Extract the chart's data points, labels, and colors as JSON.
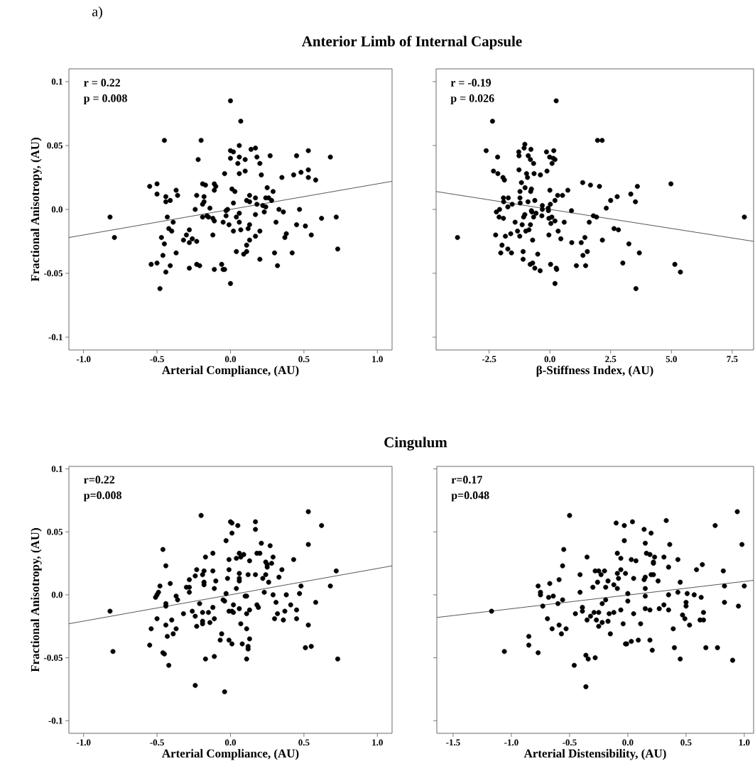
{
  "chart_data": [
    {
      "type": "scatter",
      "title": "a)",
      "subtitle": "Anterior Limb of Internal Capsule",
      "xlabel": "Arterial Compliance, (AU)",
      "ylabel": "Fractional Anisotropy, (AU)",
      "annotations": [
        "r = 0.22",
        "p = 0.008"
      ],
      "xlim": [
        -1.1,
        1.1
      ],
      "ylim": [
        -0.11,
        0.11
      ],
      "xticks": [
        {
          "value": -1,
          "label": "-1.0"
        },
        -0.5,
        {
          "value": 0,
          "label": "0.0"
        },
        0.5,
        {
          "value": 1,
          "label": "1.0"
        }
      ],
      "yticks": [
        -0.1,
        -0.05,
        {
          "value": 0,
          "label": "0.0"
        },
        0.05,
        0.1
      ],
      "series": [
        {
          "marker": "circle",
          "color": "#000000",
          "x": [
            -0.82,
            -0.79,
            -0.45,
            -0.2,
            0.0,
            0.07,
            -0.22,
            -0.55,
            -0.5,
            -0.5,
            -0.44,
            -0.44,
            -0.41,
            -0.37,
            -0.36,
            -0.43,
            -0.39,
            -0.42,
            -0.4,
            -0.47,
            -0.45,
            -0.46,
            -0.37,
            -0.54,
            -0.5,
            -0.41,
            -0.44,
            -0.48,
            -0.3,
            -0.28,
            -0.32,
            -0.28,
            -0.26,
            -0.23,
            -0.28,
            -0.23,
            -0.21,
            -0.23,
            -0.24,
            -0.19,
            -0.17,
            -0.18,
            -0.18,
            -0.19,
            -0.14,
            -0.11,
            -0.1,
            -0.11,
            -0.19,
            -0.16,
            -0.15,
            -0.12,
            -0.11,
            -0.12,
            -0.11,
            -0.06,
            -0.05,
            -0.04,
            0.0,
            -0.04,
            -0.05,
            -0.03,
            -0.03,
            -0.02,
            -0.01,
            0.02,
            0.01,
            0.03,
            0.02,
            0.0,
            0.02,
            0.0,
            0.06,
            0.06,
            0.05,
            0.1,
            0.1,
            0.06,
            0.04,
            0.06,
            0.06,
            0.07,
            0.13,
            0.11,
            0.13,
            0.17,
            0.18,
            0.17,
            0.13,
            0.12,
            0.13,
            0.11,
            0.11,
            0.09,
            0.04,
            0.17,
            0.2,
            0.2,
            0.14,
            0.17,
            0.18,
            0.2,
            0.21,
            0.27,
            0.25,
            0.29,
            0.24,
            0.26,
            0.28,
            0.22,
            0.24,
            0.23,
            0.35,
            0.33,
            0.36,
            0.31,
            0.3,
            0.32,
            0.37,
            0.38,
            0.42,
            0.45,
            0.47,
            0.43,
            0.48,
            0.45,
            0.53,
            0.53,
            0.53,
            0.58,
            0.68,
            0.51,
            0.55,
            0.62,
            0.72,
            0.73
          ],
          "values": [
            -0.006,
            -0.022,
            0.054,
            0.054,
            0.085,
            0.069,
            0.039,
            0.018,
            0.02,
            0.012,
            0.01,
            0.006,
            0.007,
            0.015,
            0.011,
            -0.006,
            -0.01,
            -0.015,
            -0.017,
            -0.022,
            -0.027,
            -0.036,
            -0.034,
            -0.043,
            -0.042,
            -0.044,
            -0.049,
            -0.062,
            -0.02,
            -0.016,
            -0.024,
            -0.026,
            -0.023,
            -0.025,
            -0.046,
            -0.043,
            -0.044,
            0.011,
            0.0,
            0.02,
            0.019,
            0.01,
            0.006,
            0.004,
            0.001,
            0.02,
            0.018,
            0.015,
            -0.006,
            -0.005,
            -0.006,
            -0.007,
            -0.009,
            -0.02,
            -0.047,
            -0.043,
            -0.047,
            -0.047,
            -0.058,
            0.028,
            -0.01,
            -0.001,
            -0.005,
            0.0,
            -0.012,
            -0.017,
            0.016,
            0.014,
            0.005,
            0.046,
            0.045,
            0.04,
            0.05,
            0.041,
            0.036,
            0.039,
            0.03,
            0.028,
            -0.006,
            -0.01,
            -0.003,
            -0.016,
            0.011,
            0.007,
            0.006,
            0.009,
            0.004,
            -0.004,
            -0.012,
            -0.015,
            -0.024,
            -0.028,
            -0.033,
            -0.035,
            -0.033,
            -0.021,
            -0.017,
            -0.039,
            0.047,
            0.048,
            0.041,
            0.036,
            0.027,
            0.042,
            0.017,
            0.014,
            0.009,
            0.009,
            0.007,
            0.003,
            0.002,
            -0.002,
            0.025,
            0.0,
            -0.002,
            -0.01,
            -0.034,
            -0.044,
            -0.022,
            -0.019,
            -0.034,
            -0.012,
            0.0,
            0.027,
            0.029,
            0.042,
            0.046,
            0.031,
            0.025,
            0.023,
            0.041,
            -0.013,
            -0.02,
            -0.007,
            -0.006,
            -0.031
          ]
        },
        {
          "type": "line",
          "marker": "none",
          "color": "#444444",
          "x": [
            -1.1,
            1.1
          ],
          "values": [
            -0.022,
            0.022
          ]
        }
      ]
    },
    {
      "type": "scatter",
      "xlabel": "β-Stiffness Index, (AU)",
      "annotations": [
        "r = -0.19",
        "p = 0.026"
      ],
      "tick_labels": "x",
      "xlim": [
        -4.68,
        8.38
      ],
      "ylim": [
        -0.11,
        0.11
      ],
      "xticks": [
        -2.5,
        {
          "value": 0,
          "label": "0.0"
        },
        2.5,
        {
          "value": 5,
          "label": "5.0"
        },
        7.5
      ],
      "yticks": [
        -0.1,
        -0.05,
        0,
        0.05,
        0.1
      ],
      "series": [
        {
          "marker": "circle",
          "color": "#000000",
          "x": [
            -3.8,
            -2.36,
            -2.62,
            -2.15,
            -2.32,
            -2.14,
            -1.93,
            -1.87,
            0.26,
            1.96,
            2.15,
            -1.28,
            -1.27,
            -1.03,
            -1.06,
            -0.78,
            -0.89,
            -0.8,
            -0.67,
            -1.27,
            -0.96,
            -0.92,
            -0.65,
            -0.39,
            -0.14,
            0.16,
            -0.01,
            0.14,
            0.21,
            0.09,
            -0.12,
            -1.17,
            -1.02,
            -1.23,
            -0.76,
            -0.79,
            -1.23,
            -1.22,
            -0.9,
            -0.62,
            0.0,
            0.32,
            0.52,
            0.74,
            -1.91,
            -1.71,
            -1.9,
            -1.55,
            -1.73,
            -2.2,
            -2.07,
            -2.09,
            -1.91,
            -1.43,
            -1.14,
            -1.08,
            -1.03,
            -0.76,
            -0.74,
            -0.67,
            -0.57,
            -0.31,
            -0.31,
            -0.07,
            -0.33,
            -0.06,
            0.02,
            0.21,
            -0.04,
            0.08,
            0.21,
            0.04,
            0.59,
            0.89,
            -1.33,
            -1.24,
            -0.99,
            -0.86,
            -0.8,
            -0.71,
            -1.61,
            -1.83,
            -2.23,
            -1.97,
            -1.73,
            -1.58,
            -2.02,
            -1.1,
            -1.1,
            -0.81,
            -0.71,
            -0.62,
            -0.4,
            -0.5,
            -0.04,
            0.34,
            0.45,
            0.9,
            1.29,
            1.44,
            1.36,
            1.54,
            0.03,
            0.26,
            0.28,
            0.21,
            1.09,
            1.47,
            1.35,
            1.67,
            2.04,
            1.79,
            1.92,
            1.62,
            2.32,
            2.5,
            2.77,
            2.64,
            2.82,
            2.16,
            3.25,
            3.68,
            3.0,
            3.33,
            3.6,
            3.52,
            3.54,
            4.98,
            5.14,
            5.37,
            8.0
          ],
          "values": [
            -0.022,
            0.069,
            0.046,
            0.041,
            0.03,
            0.028,
            0.025,
            0.023,
            0.085,
            0.054,
            0.054,
            0.045,
            0.042,
            0.051,
            0.048,
            0.047,
            0.042,
            0.039,
            0.036,
            0.031,
            0.028,
            0.025,
            0.028,
            0.027,
            0.045,
            0.046,
            0.041,
            0.04,
            0.039,
            0.036,
            0.03,
            0.021,
            0.017,
            0.014,
            0.016,
            0.014,
            0.009,
            0.005,
            0.006,
            0.007,
            0.015,
            0.011,
            0.011,
            0.015,
            0.009,
            0.009,
            0.006,
            0.004,
            0.002,
            -0.002,
            0.0,
            -0.006,
            -0.007,
            -0.01,
            -0.012,
            -0.006,
            -0.004,
            -0.001,
            -0.002,
            -0.006,
            -0.003,
            0.003,
            0.0,
            0.001,
            -0.005,
            -0.001,
            0.004,
            0.007,
            -0.007,
            -0.006,
            -0.009,
            -0.011,
            -0.01,
            -0.001,
            -0.017,
            -0.021,
            -0.017,
            -0.016,
            -0.012,
            -0.024,
            -0.019,
            -0.021,
            -0.02,
            -0.028,
            -0.031,
            -0.034,
            -0.034,
            -0.033,
            -0.039,
            -0.043,
            -0.042,
            -0.046,
            -0.048,
            -0.035,
            -0.02,
            -0.017,
            -0.023,
            -0.026,
            -0.026,
            -0.022,
            -0.036,
            -0.033,
            -0.043,
            -0.046,
            -0.047,
            -0.058,
            -0.044,
            -0.044,
            0.021,
            0.019,
            0.018,
            -0.005,
            -0.006,
            -0.01,
            0.001,
            0.007,
            0.01,
            -0.015,
            -0.016,
            -0.024,
            -0.027,
            -0.034,
            -0.042,
            0.012,
            0.018,
            0.006,
            -0.062,
            0.02,
            -0.043,
            -0.049,
            -0.006
          ]
        },
        {
          "type": "line",
          "marker": "none",
          "color": "#444444",
          "x": [
            -4.68,
            8.38
          ],
          "values": [
            0.014,
            -0.025
          ]
        }
      ]
    },
    {
      "type": "scatter",
      "subtitle": "Cingulum",
      "xlabel": "Arterial Compliance, (AU)",
      "ylabel": "Fractional Anisotropy, (AU)",
      "annotations": [
        "r=0.22",
        "p=0.008"
      ],
      "xlim": [
        -1.1,
        1.1
      ],
      "ylim": [
        -0.11,
        0.102
      ],
      "xticks": [
        {
          "value": -1,
          "label": "-1.0"
        },
        -0.5,
        {
          "value": 0,
          "label": "0.0"
        },
        0.5,
        {
          "value": 1,
          "label": "1.0"
        }
      ],
      "yticks": [
        -0.1,
        -0.05,
        {
          "value": 0,
          "label": "0.0"
        },
        0.05,
        0.1
      ],
      "series": [
        {
          "marker": "circle",
          "color": "#000000",
          "x": [
            -0.82,
            -0.8,
            -0.46,
            -0.44,
            -0.48,
            -0.41,
            -0.49,
            -0.5,
            -0.51,
            -0.37,
            -0.36,
            -0.44,
            -0.44,
            -0.5,
            -0.44,
            -0.4,
            -0.37,
            -0.39,
            -0.43,
            -0.54,
            -0.55,
            -0.46,
            -0.45,
            -0.42,
            -0.32,
            -0.3,
            -0.28,
            -0.28,
            -0.28,
            -0.26,
            -0.24,
            -0.23,
            -0.21,
            -0.24,
            -0.23,
            -0.24,
            -0.2,
            -0.17,
            -0.18,
            -0.19,
            -0.18,
            -0.18,
            -0.19,
            -0.19,
            -0.19,
            -0.17,
            -0.15,
            -0.14,
            -0.12,
            -0.12,
            -0.1,
            -0.11,
            -0.12,
            -0.11,
            -0.11,
            -0.03,
            -0.01,
            -0.01,
            -0.02,
            -0.03,
            -0.05,
            -0.04,
            -0.01,
            0.01,
            0.02,
            0.02,
            0.04,
            -0.01,
            0.01,
            -0.06,
            -0.07,
            -0.04,
            0.0,
            0.01,
            0.05,
            0.01,
            0.04,
            0.06,
            0.07,
            0.09,
            0.06,
            0.06,
            0.06,
            0.06,
            0.07,
            0.08,
            0.1,
            0.11,
            0.13,
            0.11,
            0.11,
            0.13,
            0.12,
            0.12,
            0.11,
            0.13,
            0.12,
            0.17,
            0.17,
            0.18,
            0.2,
            0.21,
            0.17,
            0.22,
            0.24,
            0.26,
            0.24,
            0.25,
            0.25,
            0.28,
            0.27,
            0.29,
            0.23,
            0.18,
            0.19,
            0.29,
            0.31,
            0.32,
            0.3,
            0.36,
            0.35,
            0.33,
            0.38,
            0.37,
            0.41,
            0.43,
            0.45,
            0.45,
            0.47,
            0.48,
            0.53,
            0.53,
            0.53,
            0.51,
            0.55,
            0.58,
            0.62,
            0.68,
            0.72,
            0.73
          ],
          "values": [
            -0.013,
            -0.045,
            0.036,
            0.023,
            0.007,
            0.009,
            0.002,
            0.0,
            -0.002,
            -0.001,
            -0.004,
            -0.007,
            -0.009,
            -0.019,
            -0.024,
            -0.02,
            -0.027,
            -0.031,
            -0.033,
            -0.027,
            -0.04,
            -0.046,
            -0.047,
            -0.056,
            -0.015,
            0.006,
            0.012,
            0.006,
            0.002,
            -0.013,
            -0.017,
            -0.025,
            -0.007,
            -0.072,
            0.02,
            0.015,
            0.063,
            0.03,
            0.019,
            0.016,
            0.01,
            0.008,
            -0.014,
            -0.021,
            -0.023,
            -0.051,
            -0.014,
            -0.022,
            0.033,
            0.019,
            0.011,
            0.005,
            -0.01,
            -0.019,
            -0.049,
            0.043,
            0.028,
            0.02,
            0.013,
            0.001,
            -0.004,
            -0.005,
            -0.013,
            -0.013,
            -0.008,
            -0.014,
            0.005,
            -0.036,
            -0.039,
            -0.031,
            -0.036,
            -0.077,
            0.058,
            0.057,
            0.055,
            0.049,
            0.029,
            0.033,
            0.03,
            0.032,
            0.017,
            0.013,
            0.011,
            -0.011,
            -0.023,
            -0.039,
            -0.001,
            -0.001,
            -0.012,
            -0.027,
            -0.015,
            -0.035,
            -0.041,
            -0.043,
            -0.051,
            0.027,
            0.016,
            0.058,
            0.052,
            0.033,
            0.033,
            0.041,
            0.016,
            0.013,
            0.016,
            0.01,
            0.026,
            0.024,
            0.022,
            0.025,
            0.039,
            0.03,
            0.002,
            -0.008,
            -0.01,
            0.0,
            -0.006,
            -0.015,
            -0.019,
            -0.02,
            0.02,
            0.014,
            0.0,
            -0.013,
            -0.008,
            0.028,
            -0.012,
            -0.019,
            0.001,
            0.007,
            0.04,
            0.066,
            -0.024,
            -0.042,
            -0.041,
            -0.006,
            0.055,
            0.007,
            0.019,
            -0.051
          ]
        },
        {
          "type": "line",
          "marker": "none",
          "color": "#444444",
          "x": [
            -1.1,
            1.1
          ],
          "values": [
            -0.023,
            0.023
          ]
        }
      ]
    },
    {
      "type": "scatter",
      "xlabel": "Arterial Distensibility, (AU)",
      "annotations": [
        "r=0.17",
        "p=0.048"
      ],
      "tick_labels": "x",
      "xlim": [
        -1.64,
        1.08
      ],
      "ylim": [
        -0.11,
        0.102
      ],
      "xticks": [
        -1.5,
        {
          "value": -1,
          "label": "-1.0"
        },
        -0.5,
        {
          "value": 0,
          "label": "0.0"
        },
        0.5,
        {
          "value": 1,
          "label": "1.0"
        }
      ],
      "yticks": [
        -0.1,
        -0.05,
        0,
        0.05,
        0.1
      ],
      "series": [
        {
          "marker": "circle",
          "color": "#000000",
          "x": [
            -1.17,
            -1.06,
            -0.85,
            -0.85,
            -0.77,
            -0.77,
            -0.75,
            -0.75,
            -0.73,
            -0.68,
            -0.67,
            -0.64,
            -0.69,
            -0.65,
            -0.6,
            -0.59,
            -0.59,
            -0.57,
            -0.56,
            -0.56,
            -0.55,
            -0.53,
            -0.5,
            -0.46,
            -0.45,
            -0.41,
            -0.41,
            -0.39,
            -0.39,
            -0.36,
            -0.35,
            -0.34,
            -0.35,
            -0.36,
            -0.32,
            -0.3,
            -0.29,
            -0.27,
            -0.28,
            -0.28,
            -0.25,
            -0.26,
            -0.25,
            -0.25,
            -0.23,
            -0.22,
            -0.22,
            -0.2,
            -0.19,
            -0.19,
            -0.17,
            -0.17,
            -0.16,
            -0.15,
            -0.12,
            -0.12,
            -0.09,
            -0.09,
            -0.1,
            -0.09,
            -0.08,
            -0.06,
            -0.06,
            -0.06,
            -0.04,
            -0.03,
            -0.03,
            -0.02,
            0.0,
            0.0,
            0.05,
            -0.02,
            -0.01,
            0.03,
            0.05,
            0.03,
            0.04,
            0.07,
            0.11,
            0.09,
            0.14,
            0.15,
            0.14,
            0.15,
            0.15,
            0.15,
            0.15,
            0.19,
            0.16,
            0.19,
            0.2,
            0.22,
            0.22,
            0.2,
            0.22,
            0.23,
            0.26,
            0.27,
            0.19,
            0.21,
            0.31,
            0.33,
            0.35,
            0.35,
            0.35,
            0.31,
            0.36,
            0.39,
            0.4,
            0.43,
            0.43,
            0.45,
            0.45,
            0.47,
            0.49,
            0.5,
            0.5,
            0.51,
            0.53,
            0.57,
            0.59,
            0.63,
            0.64,
            0.65,
            0.62,
            0.65,
            0.67,
            0.75,
            0.77,
            0.82,
            0.83,
            0.83,
            0.9,
            0.94,
            0.95,
            0.98,
            1.0
          ],
          "values": [
            -0.013,
            -0.045,
            -0.033,
            -0.04,
            -0.046,
            0.007,
            0.002,
            0.0,
            -0.009,
            -0.002,
            0.009,
            -0.001,
            -0.019,
            -0.027,
            -0.007,
            0.012,
            -0.024,
            -0.031,
            0.023,
            -0.004,
            0.036,
            -0.027,
            0.063,
            -0.056,
            -0.015,
            0.016,
            0.002,
            -0.01,
            -0.013,
            -0.048,
            0.03,
            -0.051,
            -0.02,
            -0.073,
            -0.017,
            0.006,
            -0.014,
            -0.02,
            -0.05,
            0.019,
            0.019,
            0.01,
            -0.014,
            -0.025,
            0.016,
            -0.022,
            -0.007,
            0.019,
            0.006,
            -0.004,
            0.011,
            -0.021,
            -0.015,
            -0.031,
            0.008,
            -0.014,
            0.005,
            0.033,
            0.057,
            0.017,
            0.013,
            0.02,
            0.029,
            -0.012,
            -0.023,
            0.055,
            0.043,
            0.017,
            0.001,
            -0.005,
            -0.015,
            -0.039,
            -0.039,
            -0.037,
            0.013,
            0.028,
            0.058,
            0.027,
            -0.023,
            -0.036,
            0.052,
            0.041,
            0.012,
            0.014,
            0.005,
            -0.001,
            -0.011,
            -0.012,
            0.033,
            0.032,
            0.049,
            0.026,
            0.025,
            0.016,
            0.016,
            0.03,
            0.011,
            -0.011,
            -0.036,
            -0.044,
            0.03,
            0.059,
            0.022,
            0.0,
            -0.012,
            -0.008,
            0.04,
            -0.027,
            -0.042,
            0.028,
            0.002,
            0.01,
            -0.051,
            -0.016,
            -0.019,
            -0.006,
            -0.009,
            0.001,
            -0.024,
            0.0,
            0.02,
            -0.002,
            0.024,
            -0.014,
            -0.02,
            -0.02,
            -0.042,
            0.055,
            -0.042,
            0.019,
            0.007,
            -0.006,
            -0.052,
            0.066,
            -0.009,
            0.04,
            0.007
          ]
        },
        {
          "type": "line",
          "marker": "none",
          "color": "#444444",
          "x": [
            -1.64,
            1.08
          ],
          "values": [
            -0.018,
            0.0115
          ]
        }
      ]
    }
  ]
}
